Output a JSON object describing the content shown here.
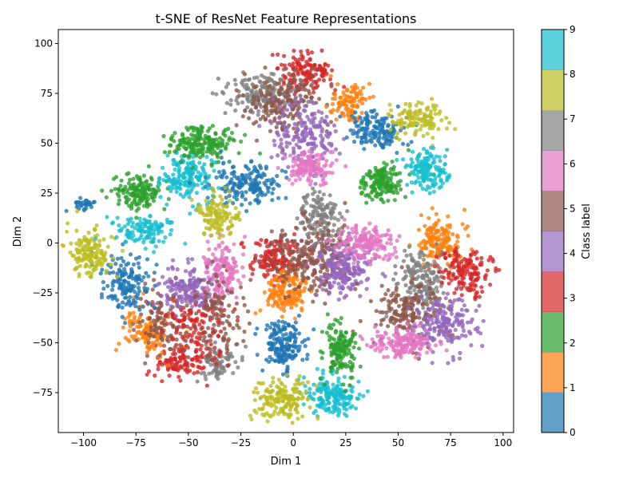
{
  "chart_data": {
    "type": "scatter",
    "title": "t-SNE of ResNet Feature Representations",
    "xlabel": "Dim 1",
    "ylabel": "Dim 2",
    "xlim": [
      -112,
      105
    ],
    "ylim": [
      -95,
      107
    ],
    "xticks": [
      -100,
      -75,
      -50,
      -25,
      0,
      25,
      50,
      75,
      100
    ],
    "yticks": [
      -75,
      -50,
      -25,
      0,
      25,
      50,
      75,
      100
    ],
    "grid": false,
    "point_alpha": 0.8,
    "colorbar": {
      "label": "Class label",
      "range": [
        0,
        9
      ],
      "ticks": [
        0,
        1,
        2,
        3,
        4,
        5,
        6,
        7,
        8,
        9
      ],
      "colors": [
        "#1f77b4",
        "#ff7f0e",
        "#2ca02c",
        "#d62728",
        "#9467bd",
        "#8c564b",
        "#e377c2",
        "#7f7f7f",
        "#bcbd22",
        "#17becf"
      ],
      "alpha": 0.7
    },
    "clusters": [
      {
        "label": 0,
        "x": -5,
        "y": -51,
        "sx": 5,
        "sy": 6,
        "n": 180
      },
      {
        "label": 9,
        "x": 18,
        "y": -77,
        "sx": 6,
        "sy": 5,
        "n": 180
      },
      {
        "label": 8,
        "x": -5,
        "y": -78,
        "sx": 7,
        "sy": 5,
        "n": 170
      },
      {
        "label": 2,
        "x": 22,
        "y": -54,
        "sx": 4,
        "sy": 7,
        "n": 150
      },
      {
        "label": 7,
        "x": -35,
        "y": -60,
        "sx": 5,
        "sy": 4,
        "n": 80
      },
      {
        "label": 3,
        "x": -55,
        "y": -60,
        "sx": 6,
        "sy": 5,
        "n": 110
      },
      {
        "label": 1,
        "x": -70,
        "y": -44,
        "sx": 6,
        "sy": 6,
        "n": 120
      },
      {
        "label": 5,
        "x": -60,
        "y": -40,
        "sx": 8,
        "sy": 8,
        "n": 130
      },
      {
        "label": 3,
        "x": -45,
        "y": -40,
        "sx": 8,
        "sy": 10,
        "n": 130
      },
      {
        "label": 4,
        "x": -50,
        "y": -23,
        "sx": 6,
        "sy": 6,
        "n": 150
      },
      {
        "label": 6,
        "x": -33,
        "y": -15,
        "sx": 5,
        "sy": 8,
        "n": 140
      },
      {
        "label": 5,
        "x": -35,
        "y": -35,
        "sx": 6,
        "sy": 10,
        "n": 100
      },
      {
        "label": 0,
        "x": -80,
        "y": -20,
        "sx": 6,
        "sy": 7,
        "n": 150
      },
      {
        "label": 8,
        "x": -97,
        "y": -5,
        "sx": 5,
        "sy": 6,
        "n": 150
      },
      {
        "label": 9,
        "x": -70,
        "y": 6,
        "sx": 7,
        "sy": 4,
        "n": 120
      },
      {
        "label": 2,
        "x": -73,
        "y": 25,
        "sx": 6,
        "sy": 4,
        "n": 150
      },
      {
        "label": 0,
        "x": -100,
        "y": 19,
        "sx": 3,
        "sy": 1.5,
        "n": 30
      },
      {
        "label": 9,
        "x": -50,
        "y": 33,
        "sx": 6,
        "sy": 6,
        "n": 170
      },
      {
        "label": 2,
        "x": -43,
        "y": 50,
        "sx": 8,
        "sy": 4,
        "n": 180
      },
      {
        "label": 0,
        "x": -22,
        "y": 30,
        "sx": 8,
        "sy": 5,
        "n": 170
      },
      {
        "label": 8,
        "x": -35,
        "y": 14,
        "sx": 5,
        "sy": 5,
        "n": 120
      },
      {
        "label": 7,
        "x": 12,
        "y": 12,
        "sx": 6,
        "sy": 6,
        "n": 140
      },
      {
        "label": 3,
        "x": -8,
        "y": -8,
        "sx": 6,
        "sy": 5,
        "n": 150
      },
      {
        "label": 1,
        "x": -3,
        "y": -25,
        "sx": 5,
        "sy": 6,
        "n": 150
      },
      {
        "label": 5,
        "x": 8,
        "y": -8,
        "sx": 10,
        "sy": 9,
        "n": 250
      },
      {
        "label": 4,
        "x": 25,
        "y": -12,
        "sx": 7,
        "sy": 7,
        "n": 200
      },
      {
        "label": 6,
        "x": 35,
        "y": 0,
        "sx": 7,
        "sy": 4,
        "n": 160
      },
      {
        "label": 3,
        "x": 5,
        "y": 85,
        "sx": 7,
        "sy": 5,
        "n": 140
      },
      {
        "label": 7,
        "x": -15,
        "y": 75,
        "sx": 8,
        "sy": 5,
        "n": 150
      },
      {
        "label": 5,
        "x": -5,
        "y": 70,
        "sx": 10,
        "sy": 8,
        "n": 190
      },
      {
        "label": 4,
        "x": 5,
        "y": 55,
        "sx": 8,
        "sy": 8,
        "n": 180
      },
      {
        "label": 6,
        "x": 8,
        "y": 38,
        "sx": 5,
        "sy": 4,
        "n": 130
      },
      {
        "label": 1,
        "x": 27,
        "y": 70,
        "sx": 4,
        "sy": 5,
        "n": 100
      },
      {
        "label": 0,
        "x": 40,
        "y": 57,
        "sx": 6,
        "sy": 5,
        "n": 150
      },
      {
        "label": 8,
        "x": 60,
        "y": 62,
        "sx": 6,
        "sy": 4,
        "n": 120
      },
      {
        "label": 2,
        "x": 42,
        "y": 30,
        "sx": 5,
        "sy": 5,
        "n": 150
      },
      {
        "label": 9,
        "x": 64,
        "y": 36,
        "sx": 5,
        "sy": 5,
        "n": 150
      },
      {
        "label": 1,
        "x": 70,
        "y": 0,
        "sx": 5,
        "sy": 6,
        "n": 160
      },
      {
        "label": 7,
        "x": 62,
        "y": -18,
        "sx": 6,
        "sy": 8,
        "n": 170
      },
      {
        "label": 3,
        "x": 82,
        "y": -15,
        "sx": 6,
        "sy": 6,
        "n": 150
      },
      {
        "label": 5,
        "x": 55,
        "y": -35,
        "sx": 8,
        "sy": 8,
        "n": 180
      },
      {
        "label": 4,
        "x": 72,
        "y": -40,
        "sx": 7,
        "sy": 7,
        "n": 170
      },
      {
        "label": 6,
        "x": 52,
        "y": -50,
        "sx": 7,
        "sy": 4,
        "n": 160
      }
    ]
  }
}
